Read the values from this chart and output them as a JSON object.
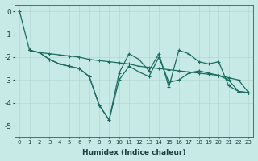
{
  "xlabel": "Humidex (Indice chaleur)",
  "bg_color": "#c8eae6",
  "line_color": "#1a6b60",
  "grid_color": "#b0d8d0",
  "xlim": [
    -0.5,
    23.5
  ],
  "ylim": [
    -5.5,
    0.3
  ],
  "yticks": [
    0,
    -1,
    -2,
    -3,
    -4,
    -5
  ],
  "xticks": [
    0,
    1,
    2,
    3,
    4,
    5,
    6,
    7,
    8,
    9,
    10,
    11,
    12,
    13,
    14,
    15,
    16,
    17,
    18,
    19,
    20,
    21,
    22,
    23
  ],
  "series1_x": [
    0,
    1,
    2,
    3,
    4,
    5,
    6,
    7,
    8,
    9,
    10,
    11,
    12,
    13,
    14,
    15,
    16,
    17,
    18,
    19,
    20,
    21,
    22,
    23
  ],
  "series1_y": [
    0.0,
    -1.7,
    -1.8,
    -2.1,
    -2.3,
    -2.4,
    -2.5,
    -2.85,
    -4.1,
    -4.75,
    -2.7,
    -1.85,
    -2.1,
    -2.6,
    -1.85,
    -3.3,
    -1.7,
    -1.85,
    -2.2,
    -2.3,
    -2.2,
    -3.25,
    -3.5,
    -3.55
  ],
  "series2_x": [
    1,
    2,
    3,
    4,
    5,
    6,
    7,
    8,
    9,
    10,
    11,
    12,
    13,
    14,
    15,
    16,
    17,
    18,
    19,
    20,
    21,
    22,
    23
  ],
  "series2_y": [
    -1.7,
    -1.8,
    -2.1,
    -2.3,
    -2.4,
    -2.5,
    -2.85,
    -4.1,
    -4.75,
    -3.0,
    -2.4,
    -2.65,
    -2.85,
    -2.0,
    -3.1,
    -3.0,
    -2.7,
    -2.6,
    -2.7,
    -2.8,
    -3.0,
    -3.5,
    -3.55
  ],
  "series3_x": [
    1,
    2,
    3,
    4,
    5,
    6,
    7,
    8,
    9,
    10,
    11,
    12,
    13,
    14,
    15,
    16,
    17,
    18,
    19,
    20,
    21,
    22,
    23
  ],
  "series3_y": [
    -1.7,
    -1.8,
    -1.85,
    -1.9,
    -1.95,
    -2.0,
    -2.1,
    -2.15,
    -2.2,
    -2.25,
    -2.3,
    -2.4,
    -2.45,
    -2.5,
    -2.55,
    -2.6,
    -2.65,
    -2.7,
    -2.75,
    -2.8,
    -2.9,
    -3.0,
    -3.55
  ],
  "markersize": 2.5,
  "linewidth": 0.9
}
